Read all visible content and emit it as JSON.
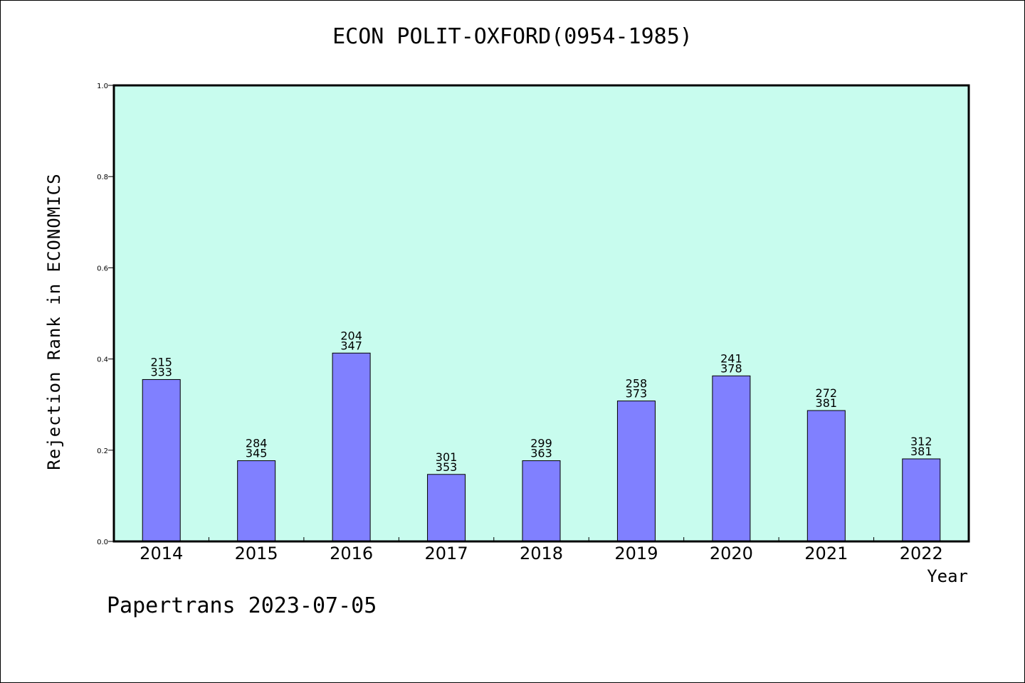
{
  "chart_data": {
    "type": "bar",
    "title": "ECON POLIT-OXFORD(0954-1985)",
    "xlabel": "Year",
    "ylabel": "Rejection Rank in ECONOMICS",
    "ylim": [
      0,
      1.0
    ],
    "yticks": [
      "0.0",
      "0.2",
      "0.4",
      "0.6",
      "0.8",
      "1.0"
    ],
    "categories": [
      "2014",
      "2015",
      "2016",
      "2017",
      "2018",
      "2019",
      "2020",
      "2021",
      "2022"
    ],
    "values": [
      0.355,
      0.177,
      0.413,
      0.147,
      0.177,
      0.308,
      0.363,
      0.287,
      0.181
    ],
    "labels_top": [
      "215",
      "284",
      "204",
      "301",
      "299",
      "258",
      "241",
      "272",
      "312"
    ],
    "labels_bottom": [
      "333",
      "345",
      "347",
      "353",
      "363",
      "373",
      "378",
      "381",
      "381"
    ],
    "grid": false,
    "legend": "none",
    "colors": {
      "plot_background": "#c8fcee",
      "bar": "#8080ff"
    }
  },
  "footer": "Papertrans 2023-07-05"
}
